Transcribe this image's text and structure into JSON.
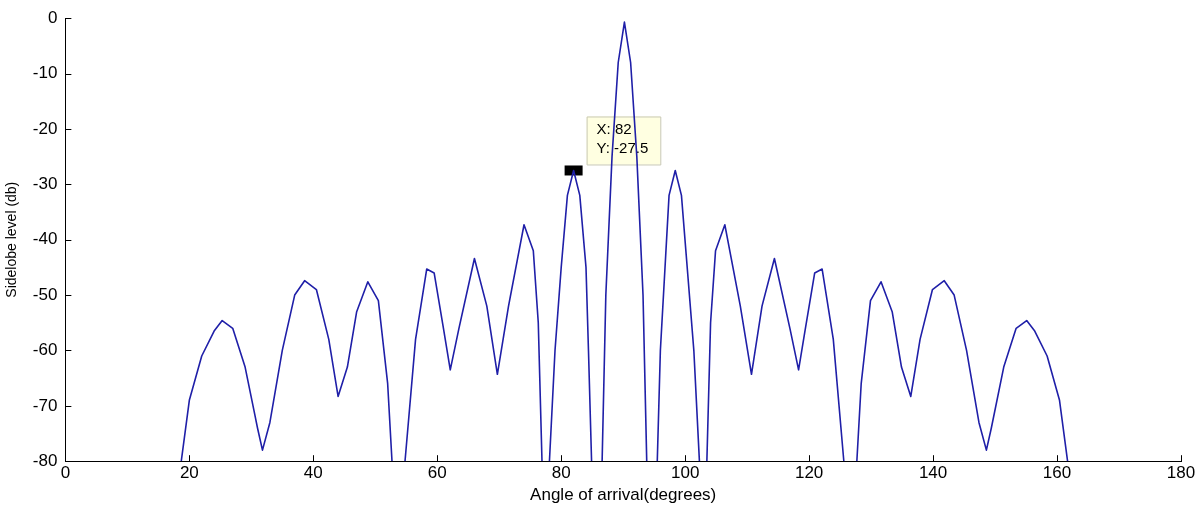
{
  "chart_data": {
    "type": "line",
    "xlabel": "Angle of arrival(degrees)",
    "ylabel": "Sidelobe level (db)",
    "xlim": [
      0,
      180
    ],
    "xticks": [
      0,
      20,
      40,
      60,
      80,
      100,
      120,
      140,
      160,
      180
    ],
    "ylim": [
      -80,
      0
    ],
    "yticks": [
      -80,
      -70,
      -60,
      -50,
      -40,
      -30,
      -20,
      -10,
      0
    ],
    "grid": false,
    "legend": false,
    "marker": "none",
    "line_style": "solid",
    "annotations": [
      {
        "text": "X: 82\nY: -27.5",
        "x": 82,
        "y": -27.5
      }
    ],
    "series": [
      {
        "color": "#1f1fa8",
        "x": [
          18.7,
          20,
          22,
          24,
          25.3,
          27,
          29,
          31,
          31.8,
          33,
          35,
          37,
          38.6,
          40.5,
          42.5,
          44,
          45.5,
          47,
          48.8,
          50.5,
          52,
          52.7,
          53.7,
          54.8,
          56.5,
          58.3,
          59.5,
          61,
          62.1,
          63.5,
          66,
          68,
          69.7,
          71.5,
          74,
          75.5,
          76.3,
          76.9,
          77.5,
          78.1,
          79,
          80,
          81,
          82,
          83,
          84,
          84.4,
          84.9,
          85.7,
          86.6,
          87.2,
          88.2,
          89.2,
          90.2,
          91.2,
          92.2,
          93.2,
          93.8,
          94.7,
          95.5,
          96.0,
          97.4,
          98.4,
          99.4,
          101.4,
          102.3,
          102.9,
          103.5,
          104.1,
          104.9,
          106.4,
          108.9,
          110.7,
          112.4,
          114.4,
          116.9,
          118.3,
          119.4,
          120.9,
          122.1,
          123.9,
          125.6,
          126.7,
          127.7,
          128.4,
          129.9,
          131.6,
          133.4,
          134.9,
          136.4,
          137.9,
          139.9,
          141.8,
          143.4,
          145.4,
          147.4,
          148.6,
          149.4,
          151.4,
          153.4,
          155.1,
          156.4,
          158.4,
          160.4,
          161.7
        ],
        "values": [
          -80,
          -69,
          -61,
          -56.5,
          -54.6,
          -56,
          -63,
          -74,
          -78,
          -73,
          -60,
          -50,
          -47.4,
          -49,
          -58,
          -68.3,
          -63,
          -53,
          -47.6,
          -51,
          -66,
          -80,
          null,
          -80,
          -58,
          -45.3,
          -46,
          -56,
          -63.5,
          -56,
          -43.4,
          -52,
          -64.3,
          -52,
          -37.3,
          -42,
          -55,
          -80,
          null,
          -80,
          -60,
          -45,
          -32,
          -27.5,
          -32,
          -45,
          -60,
          -80,
          null,
          -80,
          -50,
          -25,
          -8,
          -0.7,
          -8,
          -25,
          -50,
          -80,
          null,
          -80,
          -60,
          -32,
          -27.5,
          -32,
          -60,
          -80,
          null,
          -80,
          -55,
          -42,
          -37.3,
          -52,
          -64.3,
          -52,
          -43.4,
          -56,
          -63.5,
          -56,
          -46,
          -45.3,
          -58,
          -80,
          null,
          -80,
          -66,
          -51,
          -47.6,
          -53,
          -63,
          -68.3,
          -58,
          -49,
          -47.4,
          -50,
          -60,
          -73,
          -78,
          -74,
          -63,
          -56,
          -54.6,
          -56.5,
          -61,
          -69,
          -80
        ]
      }
    ]
  }
}
